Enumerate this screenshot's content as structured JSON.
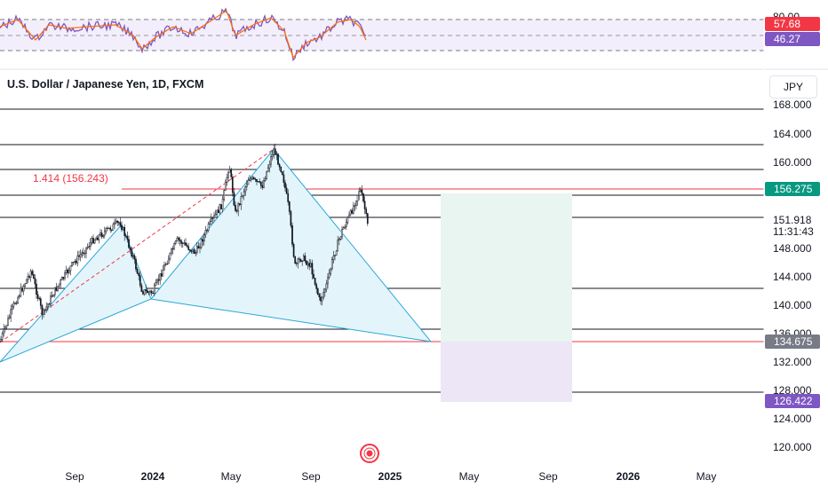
{
  "header": {
    "title": "U.S. Dollar / Japanese Yen, 1D, FXCM",
    "currency": "JPY"
  },
  "rsi": {
    "level_top": "80.00",
    "value_1": "57.68",
    "value_2": "46.27",
    "value_1_color": "#f23645",
    "value_2_color": "#7e57c2"
  },
  "price_axis": {
    "labels": [
      "168.000",
      "164.000",
      "160.000",
      "148.000",
      "144.000",
      "140.000",
      "136.000",
      "132.000",
      "128.000",
      "124.000",
      "120.000"
    ],
    "current_price": "151.918",
    "countdown": "11:31:43"
  },
  "badges": {
    "target": "156.275",
    "stop": "134.675",
    "lower": "126.422",
    "target_color": "#089981",
    "stop_color": "#787b86",
    "lower_color": "#7e57c2"
  },
  "fib_label": "1.414 (156.243)",
  "time_axis": [
    {
      "label": "Sep",
      "bold": false
    },
    {
      "label": "2024",
      "bold": true
    },
    {
      "label": "May",
      "bold": false
    },
    {
      "label": "Sep",
      "bold": false
    },
    {
      "label": "2025",
      "bold": true
    },
    {
      "label": "May",
      "bold": false
    },
    {
      "label": "Sep",
      "bold": false
    },
    {
      "label": "2026",
      "bold": true
    },
    {
      "label": "May",
      "bold": false
    }
  ],
  "colors": {
    "pattern_fill": "#e3f5fb",
    "pattern_stroke": "#2aa7d8",
    "fib_line": "#f23645",
    "profit_zone": "#e8f5f0",
    "loss_zone": "#ece6f6"
  }
}
